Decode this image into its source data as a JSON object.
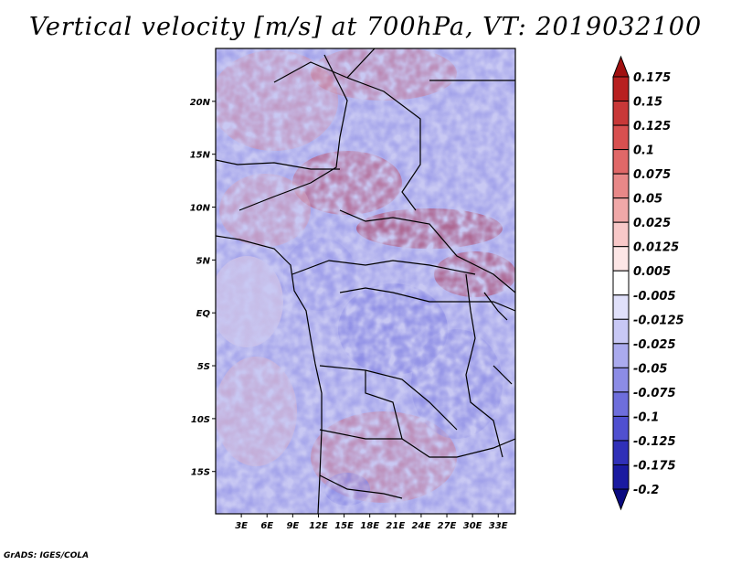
{
  "title": "Vertical velocity [m/s] at 700hPa, VT: 2019032100",
  "credit": "GrADS: IGES/COLA",
  "map": {
    "lon_ticks": [
      "3E",
      "6E",
      "9E",
      "12E",
      "15E",
      "18E",
      "21E",
      "24E",
      "27E",
      "30E",
      "33E"
    ],
    "lat_ticks": [
      "20N",
      "15N",
      "10N",
      "5N",
      "EQ",
      "5S",
      "10S",
      "15S"
    ],
    "lon_range": [
      0,
      35
    ],
    "lat_range": [
      -19,
      25
    ]
  },
  "colorbar": {
    "levels": [
      "0.175",
      "0.15",
      "0.125",
      "0.1",
      "0.075",
      "0.05",
      "0.025",
      "0.0125",
      "0.005",
      "-0.005",
      "-0.0125",
      "-0.025",
      "-0.05",
      "-0.075",
      "-0.1",
      "-0.125",
      "-0.175",
      "-0.2"
    ],
    "colors": [
      "#a01010",
      "#b82020",
      "#c83838",
      "#d85050",
      "#e06868",
      "#e88888",
      "#f0a8a8",
      "#f8c8c8",
      "#fde6e6",
      "#ffffff",
      "#e0e0fa",
      "#c8c8f5",
      "#aaaaee",
      "#8c8ce6",
      "#6e6edc",
      "#5050d0",
      "#3030b8",
      "#1a1aa0",
      "#0a0a80"
    ]
  }
}
